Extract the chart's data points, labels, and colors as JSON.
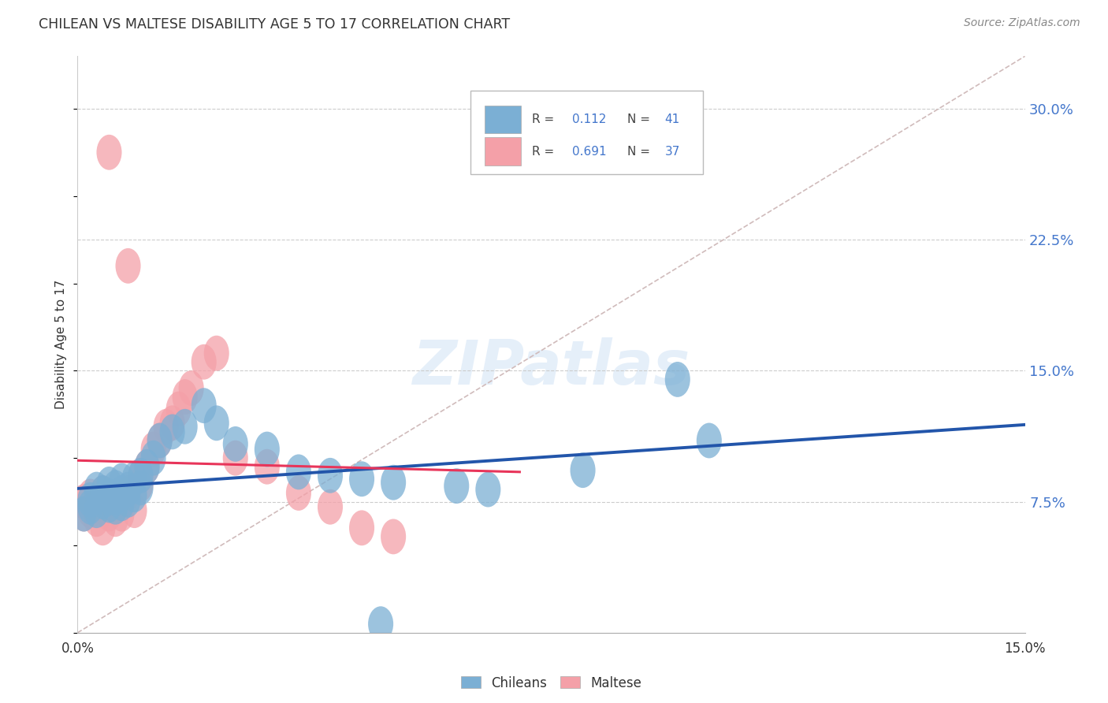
{
  "title": "CHILEAN VS MALTESE DISABILITY AGE 5 TO 17 CORRELATION CHART",
  "source": "Source: ZipAtlas.com",
  "ylabel": "Disability Age 5 to 17",
  "xlim": [
    0.0,
    0.15
  ],
  "ylim": [
    0.0,
    0.33
  ],
  "ytick_positions": [
    0.075,
    0.15,
    0.225,
    0.3
  ],
  "ytick_labels": [
    "7.5%",
    "15.0%",
    "22.5%",
    "30.0%"
  ],
  "chilean_color": "#7BAFD4",
  "maltese_color": "#F4A0A8",
  "chilean_line_color": "#2255AA",
  "maltese_line_color": "#E8355A",
  "dashed_line_color": "#D0BBBB",
  "grid_color": "#CCCCCC",
  "title_color": "#333333",
  "source_color": "#888888",
  "ytick_color": "#4477CC",
  "r_value_color": "#4477CC",
  "chileans_x": [
    0.001,
    0.002,
    0.002,
    0.003,
    0.003,
    0.004,
    0.004,
    0.005,
    0.005,
    0.005,
    0.006,
    0.006,
    0.006,
    0.007,
    0.007,
    0.007,
    0.008,
    0.008,
    0.009,
    0.009,
    0.01,
    0.01,
    0.011,
    0.012,
    0.013,
    0.015,
    0.017,
    0.02,
    0.022,
    0.025,
    0.03,
    0.035,
    0.04,
    0.045,
    0.05,
    0.06,
    0.065,
    0.08,
    0.095,
    0.1,
    0.048
  ],
  "chileans_y": [
    0.068,
    0.072,
    0.076,
    0.07,
    0.082,
    0.075,
    0.08,
    0.073,
    0.078,
    0.085,
    0.072,
    0.077,
    0.083,
    0.074,
    0.08,
    0.087,
    0.076,
    0.082,
    0.079,
    0.088,
    0.083,
    0.09,
    0.095,
    0.1,
    0.11,
    0.115,
    0.118,
    0.13,
    0.12,
    0.108,
    0.105,
    0.092,
    0.09,
    0.088,
    0.086,
    0.084,
    0.082,
    0.093,
    0.145,
    0.11,
    0.005
  ],
  "maltese_x": [
    0.001,
    0.001,
    0.002,
    0.002,
    0.003,
    0.003,
    0.004,
    0.004,
    0.004,
    0.005,
    0.005,
    0.006,
    0.006,
    0.007,
    0.007,
    0.008,
    0.009,
    0.01,
    0.01,
    0.011,
    0.012,
    0.013,
    0.014,
    0.015,
    0.016,
    0.017,
    0.018,
    0.02,
    0.022,
    0.025,
    0.03,
    0.035,
    0.04,
    0.045,
    0.05,
    0.005,
    0.008
  ],
  "maltese_y": [
    0.068,
    0.075,
    0.07,
    0.078,
    0.065,
    0.073,
    0.06,
    0.072,
    0.08,
    0.068,
    0.075,
    0.065,
    0.072,
    0.068,
    0.075,
    0.08,
    0.07,
    0.085,
    0.09,
    0.095,
    0.105,
    0.11,
    0.118,
    0.12,
    0.128,
    0.135,
    0.14,
    0.155,
    0.16,
    0.1,
    0.095,
    0.08,
    0.072,
    0.06,
    0.055,
    0.275,
    0.21
  ]
}
